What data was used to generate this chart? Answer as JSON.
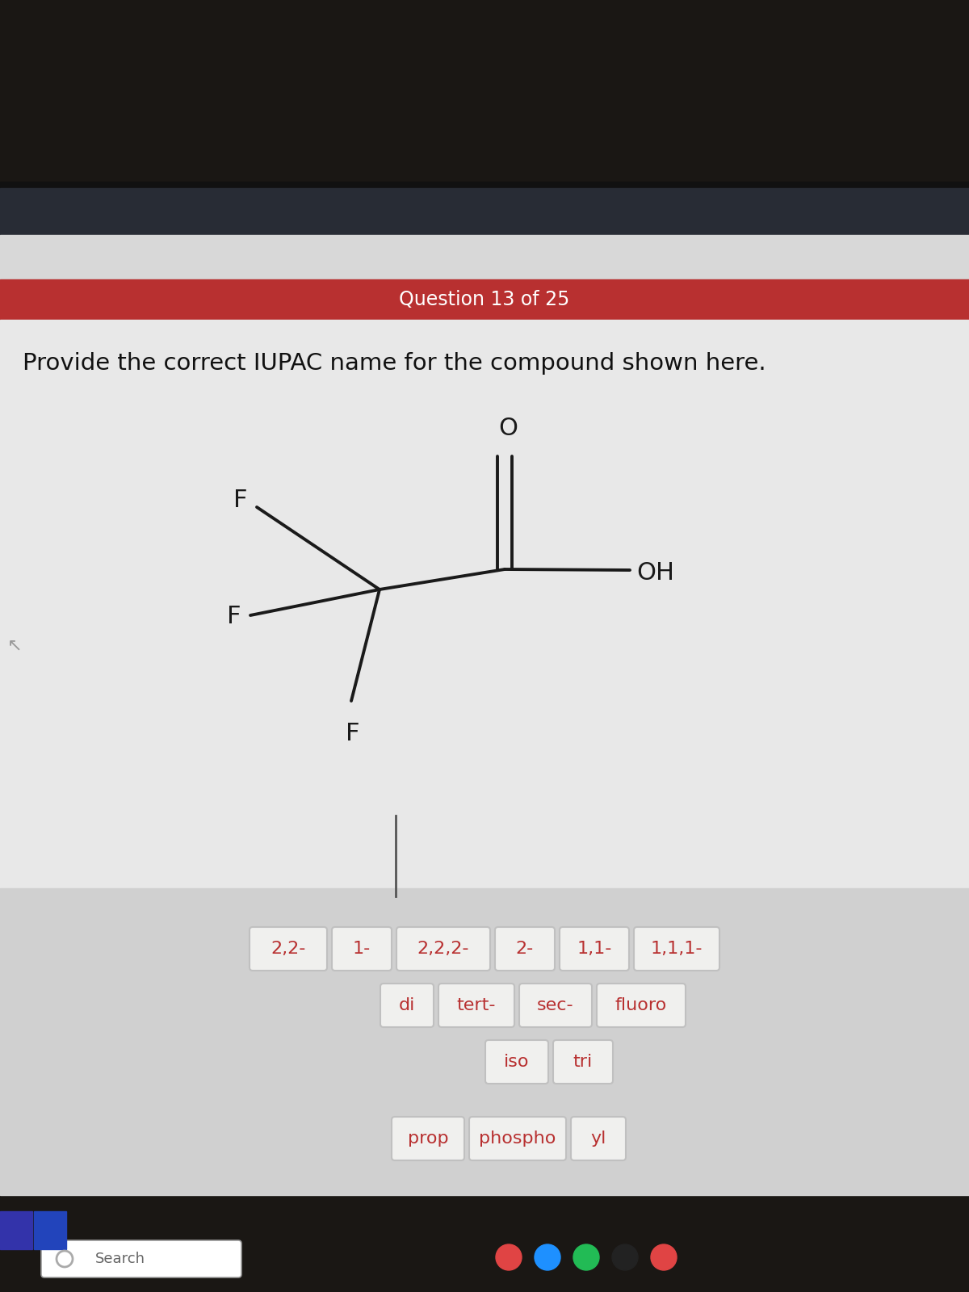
{
  "bg_very_dark": "#1a1714",
  "bg_navy": "#282c35",
  "bg_light_gray": "#dcdcdc",
  "bg_medium_gray": "#d0d0d0",
  "red_banner_color": "#b83030",
  "banner_text": "Question 13 of 25",
  "banner_text_color": "#ffffff",
  "question_text": "Provide the correct IUPAC name for the compound shown here.",
  "question_text_color": "#111111",
  "mol_line_color": "#1a1a1a",
  "button_bg": "#f0f0ee",
  "button_text_color": "#b83030",
  "button_border": "#c0c0c0",
  "row1_buttons": [
    "2,2-",
    "1-",
    "2,2,2-",
    "2-",
    "1,1-",
    "1,1,1-"
  ],
  "row2_buttons": [
    "di",
    "tert-",
    "sec-",
    "fluoro"
  ],
  "row3_buttons": [
    "iso",
    "tri"
  ],
  "row4_buttons": [
    "prop",
    "phospho",
    "yl"
  ],
  "taskbar_dark": "#1a1714",
  "search_text": "Search"
}
